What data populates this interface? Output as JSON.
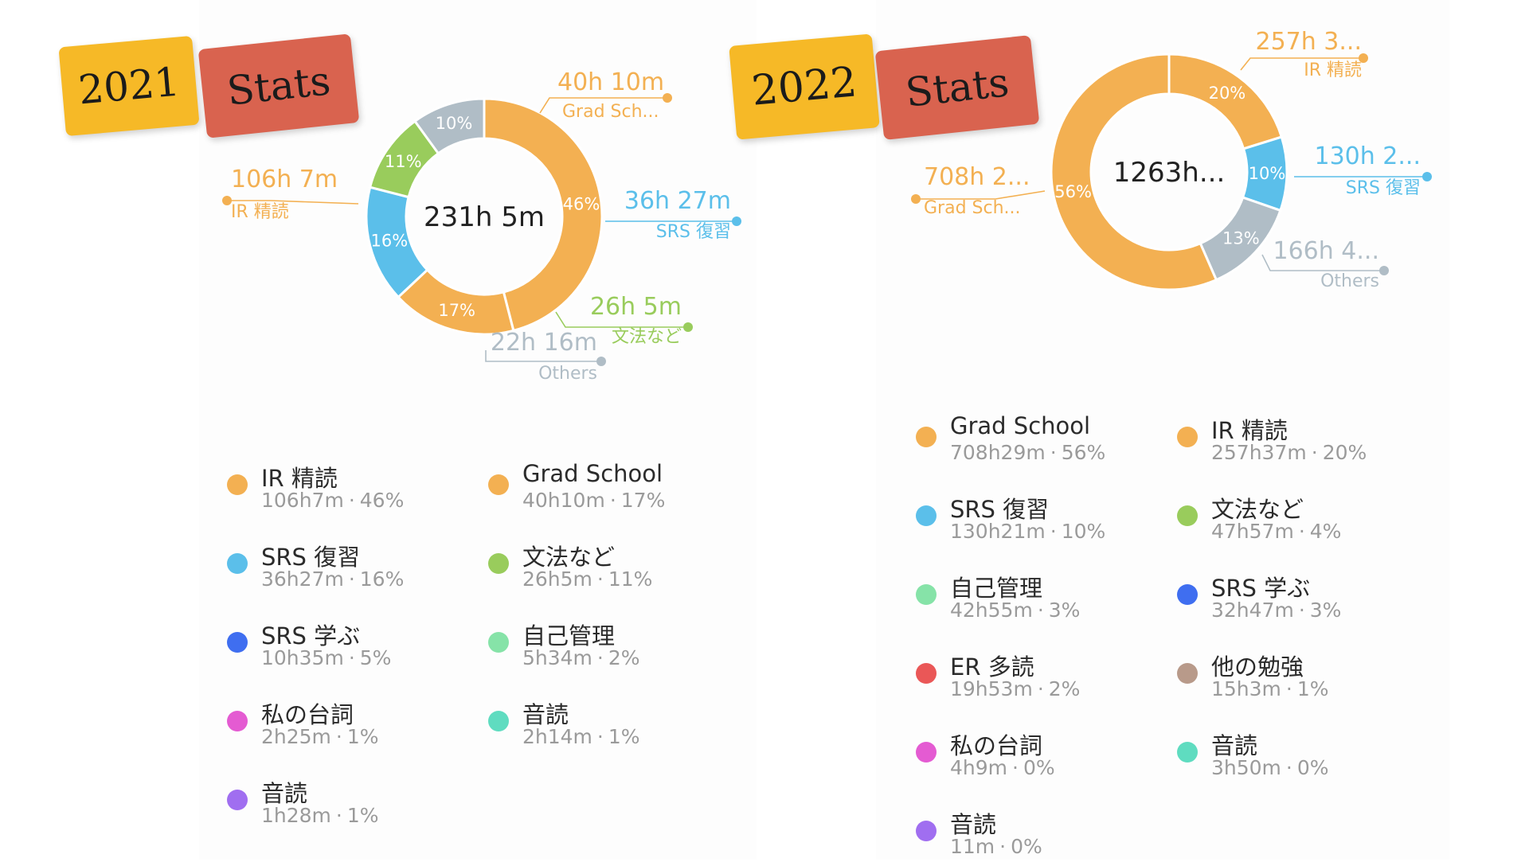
{
  "chart_data": [
    {
      "type": "pie",
      "badge": {
        "year": "2021",
        "label": "Stats"
      },
      "center_label": "231h  5m",
      "slices": [
        {
          "name": "IR 精読",
          "value_label": "106h  7m",
          "percent": 46,
          "color": "#f3b052"
        },
        {
          "name": "Grad Sch...",
          "value_label": "40h  10m",
          "percent": 17,
          "color": "#f3b052"
        },
        {
          "name": "SRS 復習",
          "value_label": "36h  27m",
          "percent": 16,
          "color": "#5bbfea"
        },
        {
          "name": "文法など",
          "value_label": "26h  5m",
          "percent": 11,
          "color": "#99cc5c"
        },
        {
          "name": "Others",
          "value_label": "22h  16m",
          "percent": 10,
          "color": "#b0bdc6"
        }
      ],
      "legend": [
        {
          "name": "IR 精読",
          "duration": "106h7m",
          "percent": "46%",
          "color": "#f3b052"
        },
        {
          "name": "Grad School",
          "duration": "40h10m",
          "percent": "17%",
          "color": "#f3b052"
        },
        {
          "name": "SRS 復習",
          "duration": "36h27m",
          "percent": "16%",
          "color": "#5bbfea"
        },
        {
          "name": "文法など",
          "duration": "26h5m",
          "percent": "11%",
          "color": "#99cc5c"
        },
        {
          "name": "SRS 学ぶ",
          "duration": "10h35m",
          "percent": "5%",
          "color": "#3f6ef0"
        },
        {
          "name": "自己管理",
          "duration": "5h34m",
          "percent": "2%",
          "color": "#86e3a8"
        },
        {
          "name": "私の台詞",
          "duration": "2h25m",
          "percent": "1%",
          "color": "#e45bd2"
        },
        {
          "name": "音読",
          "duration": "2h14m",
          "percent": "1%",
          "color": "#5fdcc0"
        },
        {
          "name": "音読",
          "duration": "1h28m",
          "percent": "1%",
          "color": "#a06ef0"
        }
      ]
    },
    {
      "type": "pie",
      "badge": {
        "year": "2022",
        "label": "Stats"
      },
      "center_label": "1263h...",
      "slices": [
        {
          "name": "IR 精読",
          "value_label": "257h  3...",
          "percent": 20,
          "color": "#f3b052"
        },
        {
          "name": "SRS 復習",
          "value_label": "130h  2...",
          "percent": 10,
          "color": "#5bbfea"
        },
        {
          "name": "Others",
          "value_label": "166h  4...",
          "percent": 13,
          "color": "#b0bdc6"
        },
        {
          "name": "Grad Sch...",
          "value_label": "708h  2...",
          "percent": 56,
          "color": "#f3b052"
        }
      ],
      "legend": [
        {
          "name": "Grad School",
          "duration": "708h29m",
          "percent": "56%",
          "color": "#f3b052"
        },
        {
          "name": "IR 精読",
          "duration": "257h37m",
          "percent": "20%",
          "color": "#f3b052"
        },
        {
          "name": "SRS 復習",
          "duration": "130h21m",
          "percent": "10%",
          "color": "#5bbfea"
        },
        {
          "name": "文法など",
          "duration": "47h57m",
          "percent": "4%",
          "color": "#99cc5c"
        },
        {
          "name": "自己管理",
          "duration": "42h55m",
          "percent": "3%",
          "color": "#86e3a8"
        },
        {
          "name": "SRS 学ぶ",
          "duration": "32h47m",
          "percent": "3%",
          "color": "#3f6ef0"
        },
        {
          "name": "ER 多読",
          "duration": "19h53m",
          "percent": "2%",
          "color": "#ea5757"
        },
        {
          "name": "他の勉強",
          "duration": "15h3m",
          "percent": "1%",
          "color": "#b89a8a"
        },
        {
          "name": "私の台詞",
          "duration": "4h9m",
          "percent": "0%",
          "color": "#e45bd2"
        },
        {
          "name": "音読",
          "duration": "3h50m",
          "percent": "0%",
          "color": "#5fdcc0"
        },
        {
          "name": "音読",
          "duration": "11m",
          "percent": "0%",
          "color": "#a06ef0"
        }
      ]
    }
  ]
}
